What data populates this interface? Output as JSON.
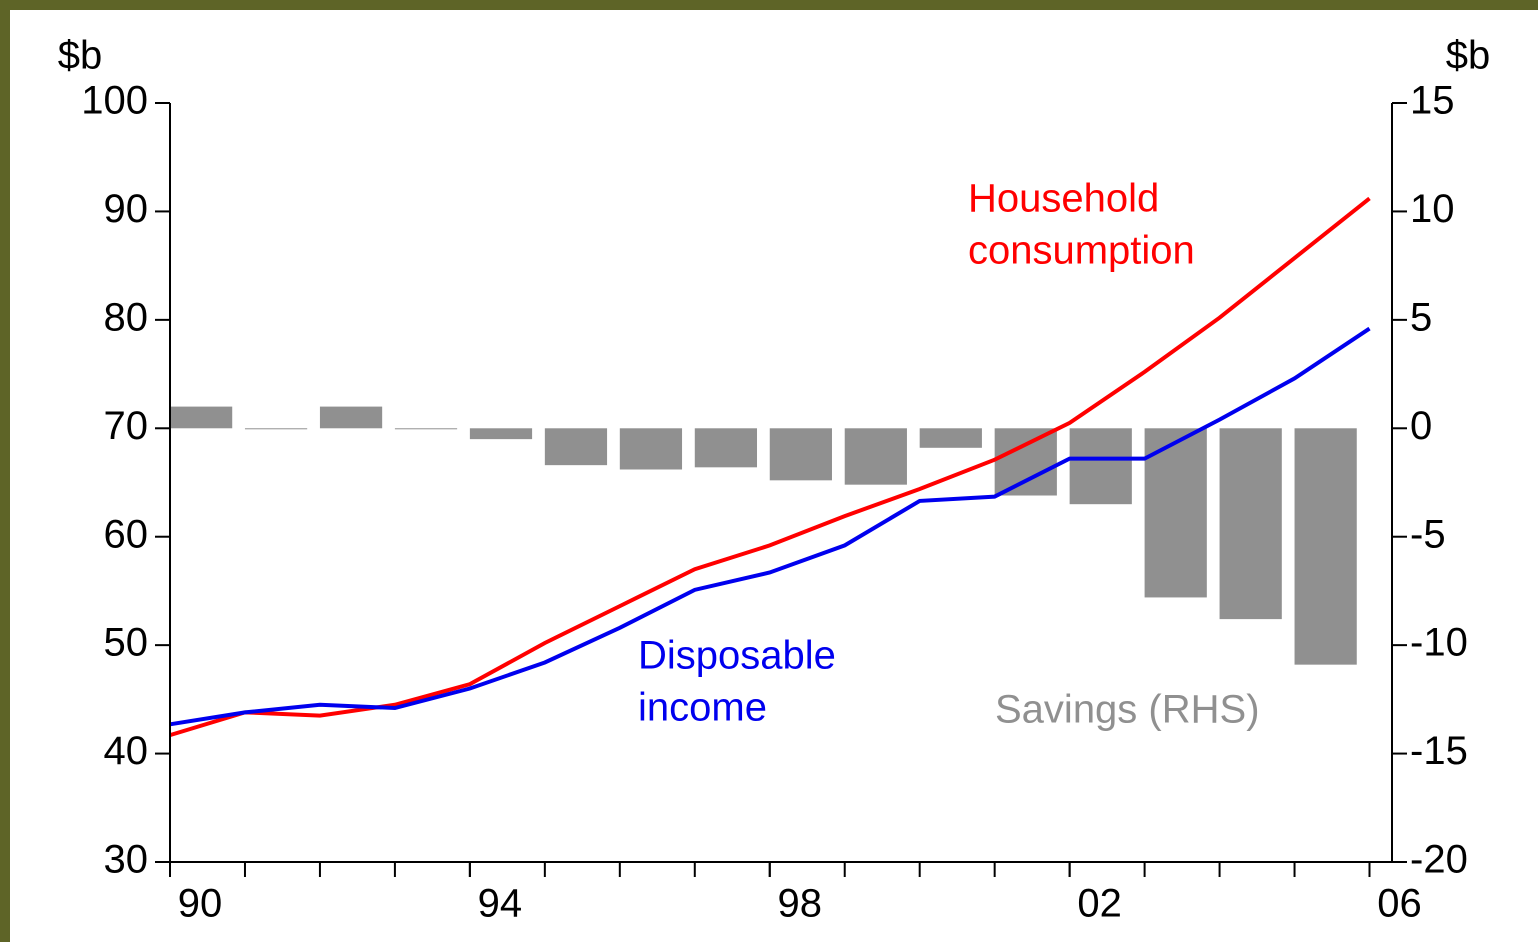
{
  "chart_data": {
    "type": "line",
    "y_unit": "$b",
    "y2_unit": "$b",
    "x": [
      1990,
      1991,
      1992,
      1993,
      1994,
      1995,
      1996,
      1997,
      1998,
      1999,
      2000,
      2001,
      2002,
      2003,
      2004,
      2005,
      2006
    ],
    "xlim": [
      1990,
      2006.3
    ],
    "xticks": [
      {
        "value": 1990,
        "label": "90"
      },
      {
        "value": 1994,
        "label": "94"
      },
      {
        "value": 1998,
        "label": "98"
      },
      {
        "value": 2002,
        "label": "02"
      },
      {
        "value": 2006,
        "label": "06"
      }
    ],
    "ylim": [
      30,
      100
    ],
    "yticks": [
      30,
      40,
      50,
      60,
      70,
      80,
      90,
      100
    ],
    "y2lim": [
      -20,
      15
    ],
    "y2ticks": [
      -20,
      -15,
      -10,
      -5,
      0,
      5,
      10,
      15
    ],
    "series": [
      {
        "name": "Savings (RHS)",
        "type": "bar",
        "axis": "y2",
        "color": "#909090",
        "values": [
          1.0,
          0,
          1.0,
          0,
          -0.5,
          -1.7,
          -1.9,
          -1.8,
          -2.4,
          -2.6,
          -0.9,
          -3.1,
          -3.5,
          -7.8,
          -8.8,
          -10.9,
          null
        ]
      },
      {
        "name": "Household consumption",
        "type": "line",
        "color": "#ff0000",
        "values": [
          41.7,
          43.8,
          43.5,
          44.5,
          46.4,
          50.2,
          53.6,
          57.0,
          59.2,
          61.9,
          64.4,
          67.1,
          70.5,
          75.2,
          80.2,
          85.7,
          91.2
        ]
      },
      {
        "name": "Disposable income",
        "type": "line",
        "color": "#0000ee",
        "values": [
          42.7,
          43.8,
          44.5,
          44.2,
          46.0,
          48.4,
          51.6,
          55.1,
          56.7,
          59.2,
          63.3,
          63.7,
          67.2,
          67.2,
          70.8,
          74.6,
          79.2
        ]
      }
    ],
    "annotations": [
      {
        "lines": [
          "Household",
          "consumption"
        ],
        "color": "#ff0000"
      },
      {
        "lines": [
          "Disposable",
          "income"
        ],
        "color": "#0000ee"
      },
      {
        "lines": [
          "Savings (RHS)"
        ],
        "color": "#909090"
      }
    ]
  }
}
